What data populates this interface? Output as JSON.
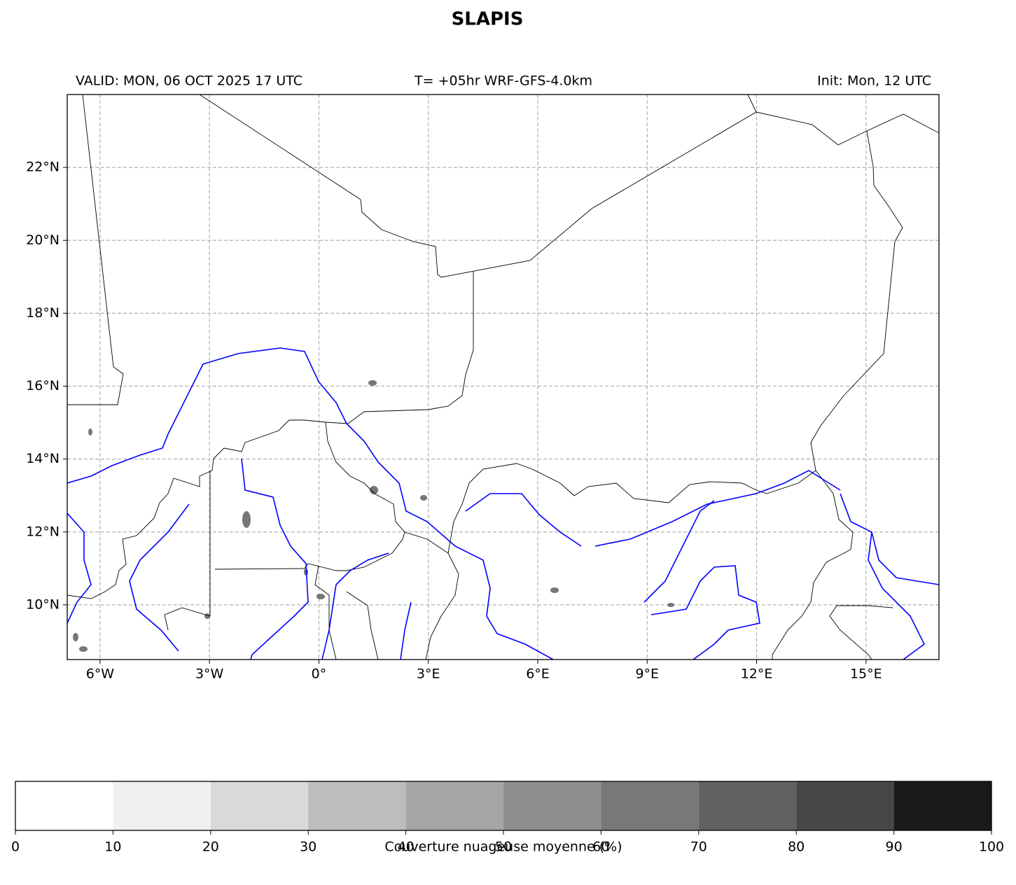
{
  "title": "SLAPIS",
  "header": {
    "valid": "VALID: MON, 06 OCT 2025 17 UTC",
    "lead": "T= +05hr WRF-GFS-4.0km",
    "init": "Init: Mon, 12 UTC"
  },
  "map": {
    "xlim": [
      -6.9,
      17
    ],
    "ylim": [
      8.5,
      24
    ],
    "grid": true,
    "xticks": [
      {
        "value": -6,
        "label": "6°W"
      },
      {
        "value": -3,
        "label": "3°W"
      },
      {
        "value": 0,
        "label": "0°"
      },
      {
        "value": 3,
        "label": "3°E"
      },
      {
        "value": 6,
        "label": "6°E"
      },
      {
        "value": 9,
        "label": "9°E"
      },
      {
        "value": 12,
        "label": "12°E"
      },
      {
        "value": 15,
        "label": "15°E"
      }
    ],
    "yticks": [
      {
        "value": 10,
        "label": "10°N"
      },
      {
        "value": 12,
        "label": "12°N"
      },
      {
        "value": 14,
        "label": "14°N"
      },
      {
        "value": 16,
        "label": "16°N"
      },
      {
        "value": 18,
        "label": "18°N"
      },
      {
        "value": 20,
        "label": "20°N"
      },
      {
        "value": 22,
        "label": "22°N"
      }
    ]
  },
  "colorbar": {
    "label": "Couverture nuageuse moyenne (%)",
    "bounds": [
      0,
      10,
      20,
      30,
      40,
      50,
      60,
      70,
      80,
      90,
      100
    ],
    "colors": [
      "#ffffff",
      "#f0f0f0",
      "#d9d9d9",
      "#bdbdbd",
      "#a6a6a6",
      "#8f8f8f",
      "#787878",
      "#616161",
      "#474747",
      "#1a1a1a"
    ]
  }
}
